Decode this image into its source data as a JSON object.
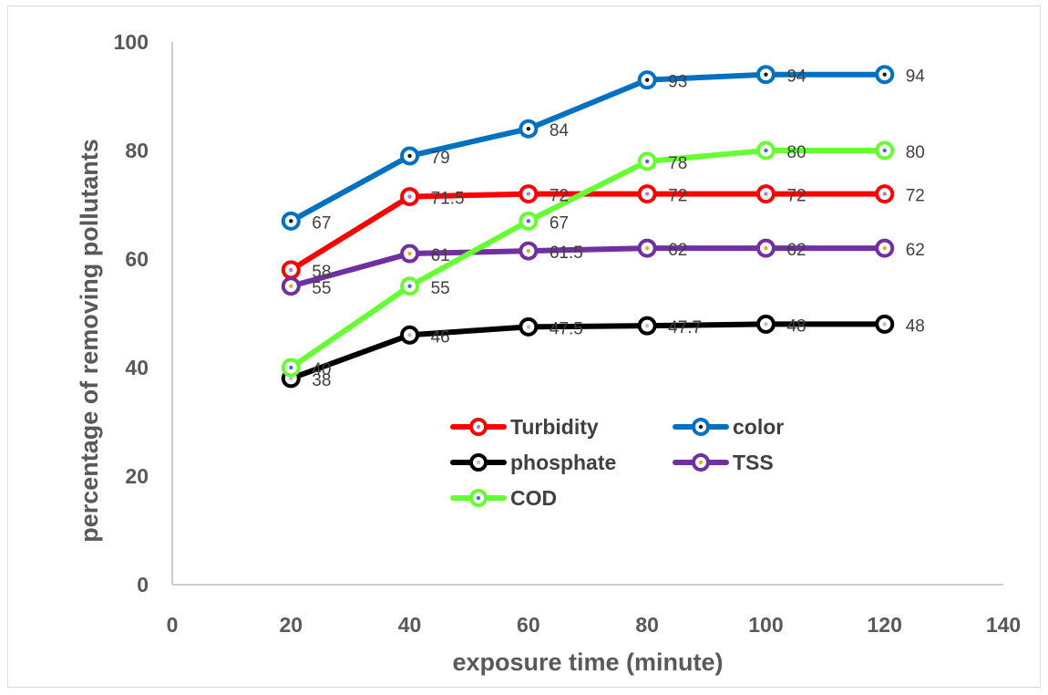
{
  "chart_data": {
    "type": "line",
    "title": "",
    "xlabel": "exposure time (minute)",
    "ylabel": "percentage of removing pollutants",
    "xlim": [
      0,
      140
    ],
    "ylim": [
      0,
      100
    ],
    "x_ticks": [
      "0",
      "20",
      "40",
      "60",
      "80",
      "100",
      "120",
      "140"
    ],
    "y_ticks": [
      "0",
      "20",
      "40",
      "60",
      "80",
      "100"
    ],
    "x": [
      20,
      40,
      60,
      80,
      100,
      120
    ],
    "grid": false,
    "legend_position": "center",
    "series": [
      {
        "name": "Turbidity",
        "color": "#ff0000",
        "marker_dot": "#b07fc8",
        "values": [
          58,
          71.5,
          72,
          72,
          72,
          72
        ],
        "labels": [
          "58",
          "71.5",
          "72",
          "72",
          "72",
          "72"
        ]
      },
      {
        "name": "color",
        "color": "#0070c0",
        "marker_dot": "#1a1a1a",
        "values": [
          67,
          79,
          84,
          93,
          94,
          94
        ],
        "labels": [
          "67",
          "79",
          "84",
          "93",
          "94",
          "94"
        ]
      },
      {
        "name": "phosphate",
        "color": "#000000",
        "marker_dot": "#bfbfbf",
        "values": [
          38,
          46,
          47.5,
          47.7,
          48,
          48
        ],
        "labels": [
          "38",
          "46",
          "47.5",
          "47.7",
          "48",
          "48"
        ]
      },
      {
        "name": "TSS",
        "color": "#7030a0",
        "marker_dot": "#e0b030",
        "values": [
          55,
          61,
          61.5,
          62,
          62,
          62
        ],
        "labels": [
          "55",
          "61",
          "61.5",
          "62",
          "62",
          "62"
        ]
      },
      {
        "name": "COD",
        "color": "#66ff33",
        "marker_dot": "#4472c4",
        "values": [
          40,
          55,
          67,
          78,
          80,
          80
        ],
        "labels": [
          "40",
          "55",
          "67",
          "78",
          "80",
          "80"
        ]
      }
    ]
  }
}
